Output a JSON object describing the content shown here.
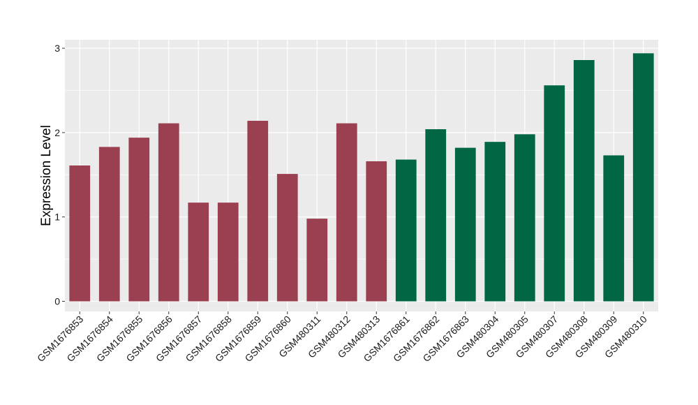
{
  "chart_data": {
    "type": "bar",
    "title": "",
    "xlabel": "",
    "ylabel": "Expression Level",
    "ylim": [
      -0.12,
      3.1
    ],
    "yticks": [
      0,
      1,
      2,
      3
    ],
    "grid": true,
    "legend": "none",
    "categories": [
      "GSM1676853",
      "GSM1676854",
      "GSM1676855",
      "GSM1676856",
      "GSM1676857",
      "GSM1676858",
      "GSM1676859",
      "GSM1676860",
      "GSM480311",
      "GSM480312",
      "GSM480313",
      "GSM1676861",
      "GSM1676862",
      "GSM1676863",
      "GSM480304",
      "GSM480305",
      "GSM480307",
      "GSM480308",
      "GSM480309",
      "GSM480310"
    ],
    "values": [
      1.61,
      1.83,
      1.94,
      2.11,
      1.17,
      1.17,
      2.14,
      1.51,
      0.98,
      2.11,
      1.66,
      1.68,
      2.04,
      1.82,
      1.89,
      1.98,
      2.56,
      2.86,
      1.73,
      2.94
    ],
    "groups": [
      0,
      0,
      0,
      0,
      0,
      0,
      0,
      0,
      0,
      0,
      0,
      1,
      1,
      1,
      1,
      1,
      1,
      1,
      1,
      1
    ],
    "group_colors": [
      "#9b4050",
      "#006644"
    ],
    "panel_background": "#ebebeb",
    "grid_color": "#ffffff"
  }
}
